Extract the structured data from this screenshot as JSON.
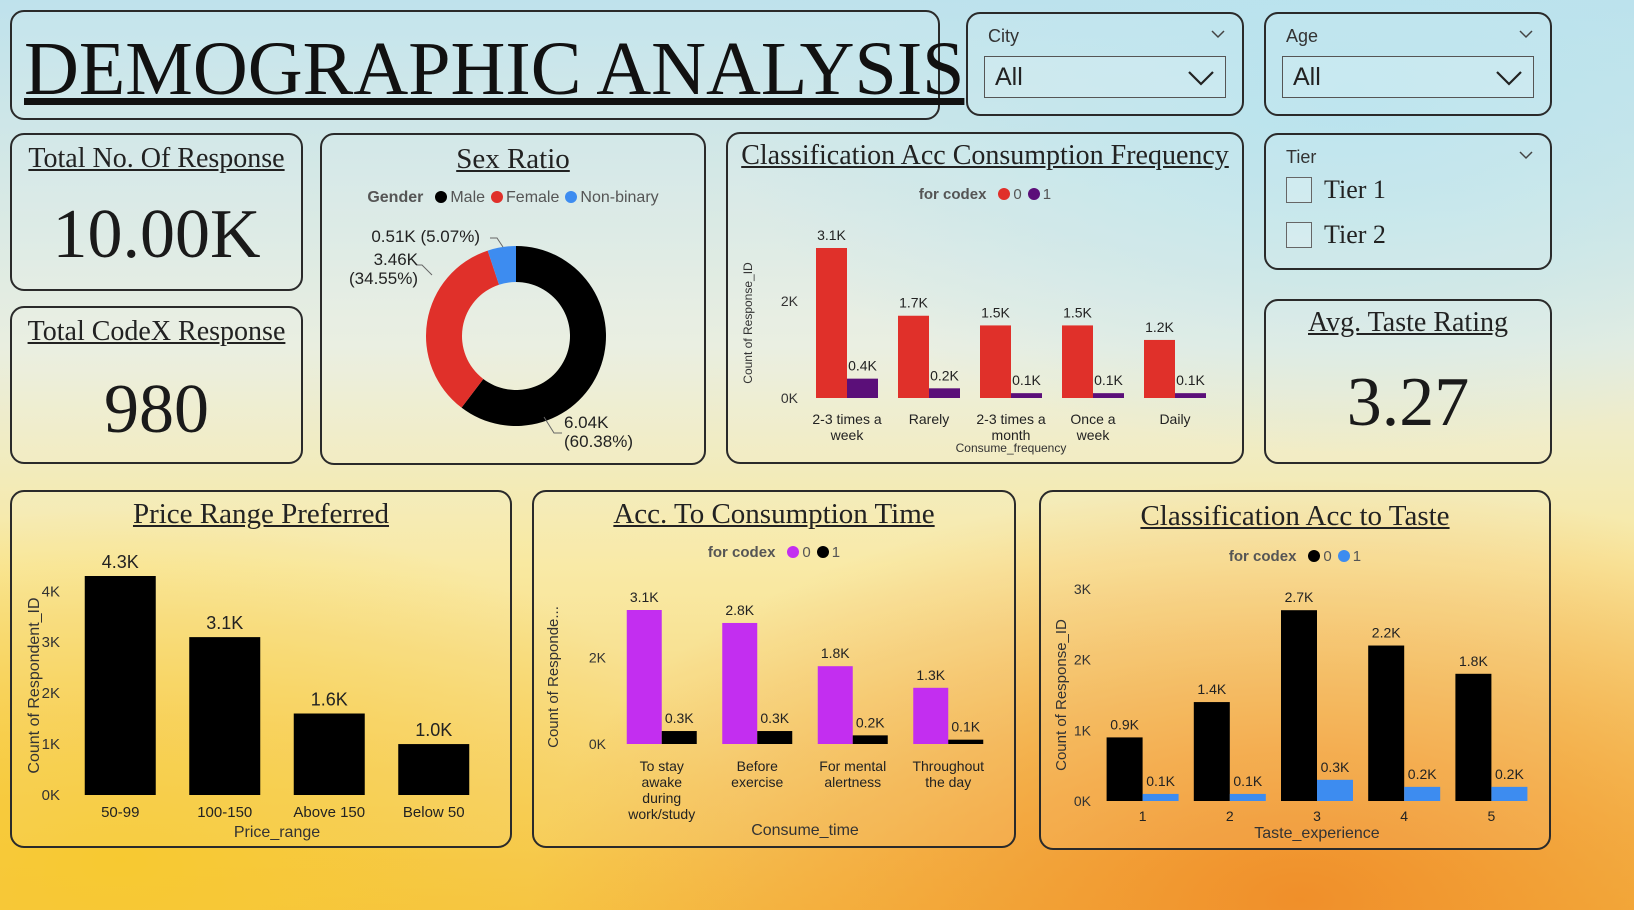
{
  "title": "DEMOGRAPHIC ANALYSIS",
  "slicers": {
    "city": {
      "label": "City",
      "value": "All"
    },
    "age": {
      "label": "Age",
      "value": "All"
    },
    "tier": {
      "label": "Tier",
      "options": [
        "Tier 1",
        "Tier 2"
      ]
    }
  },
  "kpis": {
    "total_responses": {
      "label": "Total No. Of Response",
      "value": "10.00K"
    },
    "total_codex": {
      "label": "Total CodeX Response",
      "value": "980"
    },
    "avg_taste": {
      "label": "Avg. Taste Rating",
      "value": "3.27"
    }
  },
  "colors": {
    "male": "#000000",
    "female": "#e0302a",
    "nonbinary": "#3d8cf0",
    "red": "#e0302a",
    "purple": "#5b0f79",
    "magenta": "#c32ef0",
    "black": "#000000",
    "blue": "#3d8cf0"
  },
  "chart_data": [
    {
      "id": "sex_ratio",
      "type": "pie",
      "title": "Sex Ratio",
      "legend_title": "Gender",
      "legend": [
        "Male",
        "Female",
        "Non-binary"
      ],
      "slices": [
        {
          "name": "Male",
          "value": 6.04,
          "percent": 60.38,
          "label": "6.04K",
          "plabel": "(60.38%)"
        },
        {
          "name": "Female",
          "value": 3.46,
          "percent": 34.55,
          "label": "3.46K",
          "plabel": "(34.55%)"
        },
        {
          "name": "Non-binary",
          "value": 0.51,
          "percent": 5.07,
          "label": "0.51K (5.07%)",
          "plabel": ""
        }
      ]
    },
    {
      "id": "consumption_freq",
      "type": "bar",
      "title": "Classification Acc Consumption Frequency",
      "legend_title": "for codex",
      "xlabel": "Consume_frequency",
      "ylabel": "Count of Response_ID",
      "categories": [
        [
          "2-3 times a",
          "week"
        ],
        [
          "Rarely"
        ],
        [
          "2-3 times a",
          "month"
        ],
        [
          "Once a",
          "week"
        ],
        [
          "Daily"
        ]
      ],
      "series": [
        {
          "name": "0",
          "values": [
            3.1,
            1.7,
            1.5,
            1.5,
            1.2
          ],
          "labels": [
            "3.1K",
            "1.7K",
            "1.5K",
            "1.5K",
            "1.2K"
          ]
        },
        {
          "name": "1",
          "values": [
            0.4,
            0.2,
            0.1,
            0.1,
            0.1
          ],
          "labels": [
            "0.4K",
            "0.2K",
            "0.1K",
            "0.1K",
            "0.1K"
          ]
        }
      ],
      "ylim": [
        0,
        3.1
      ],
      "yticks": [
        {
          "v": 0,
          "t": "0K"
        },
        {
          "v": 2,
          "t": "2K"
        }
      ]
    },
    {
      "id": "price_range",
      "type": "bar",
      "title": "Price Range Preferred",
      "xlabel": "Price_range",
      "ylabel": "Count of Respondent_ID",
      "categories": [
        [
          "50-99"
        ],
        [
          "100-150"
        ],
        [
          "Above 150"
        ],
        [
          "Below 50"
        ]
      ],
      "series": [
        {
          "values": [
            4.3,
            3.1,
            1.6,
            1.0
          ],
          "labels": [
            "4.3K",
            "3.1K",
            "1.6K",
            "1.0K"
          ]
        }
      ],
      "ylim": [
        0,
        4.3
      ],
      "yticks": [
        {
          "v": 0,
          "t": "0K"
        },
        {
          "v": 1,
          "t": "1K"
        },
        {
          "v": 2,
          "t": "2K"
        },
        {
          "v": 3,
          "t": "3K"
        },
        {
          "v": 4,
          "t": "4K"
        }
      ]
    },
    {
      "id": "consumption_time",
      "type": "bar",
      "title": "Acc. To Consumption Time",
      "legend_title": "for codex",
      "xlabel": "Consume_time",
      "ylabel": "Count of Responde...",
      "categories": [
        [
          "To stay",
          "awake",
          "during",
          "work/study"
        ],
        [
          "Before",
          "exercise"
        ],
        [
          "For mental",
          "alertness"
        ],
        [
          "Throughout",
          "the day"
        ]
      ],
      "series": [
        {
          "name": "0",
          "values": [
            3.1,
            2.8,
            1.8,
            1.3
          ],
          "labels": [
            "3.1K",
            "2.8K",
            "1.8K",
            "1.3K"
          ]
        },
        {
          "name": "1",
          "values": [
            0.3,
            0.3,
            0.2,
            0.1
          ],
          "labels": [
            "0.3K",
            "0.3K",
            "0.2K",
            "0.1K"
          ]
        }
      ],
      "ylim": [
        0,
        3.1
      ],
      "yticks": [
        {
          "v": 0,
          "t": "0K"
        },
        {
          "v": 2,
          "t": "2K"
        }
      ]
    },
    {
      "id": "taste",
      "type": "bar",
      "title": "Classification Acc to Taste",
      "legend_title": "for codex",
      "xlabel": "Taste_experience",
      "ylabel": "Count of Response_ID",
      "categories": [
        [
          "1"
        ],
        [
          "2"
        ],
        [
          "3"
        ],
        [
          "4"
        ],
        [
          "5"
        ]
      ],
      "series": [
        {
          "name": "0",
          "values": [
            0.9,
            1.4,
            2.7,
            2.2,
            1.8
          ],
          "labels": [
            "0.9K",
            "1.4K",
            "2.7K",
            "2.2K",
            "1.8K"
          ]
        },
        {
          "name": "1",
          "values": [
            0.1,
            0.1,
            0.3,
            0.2,
            0.2
          ],
          "labels": [
            "0.1K",
            "0.1K",
            "0.3K",
            "0.2K",
            "0.2K"
          ]
        }
      ],
      "ylim": [
        0,
        3
      ],
      "yticks": [
        {
          "v": 0,
          "t": "0K"
        },
        {
          "v": 1,
          "t": "1K"
        },
        {
          "v": 2,
          "t": "2K"
        },
        {
          "v": 3,
          "t": "3K"
        }
      ]
    }
  ]
}
